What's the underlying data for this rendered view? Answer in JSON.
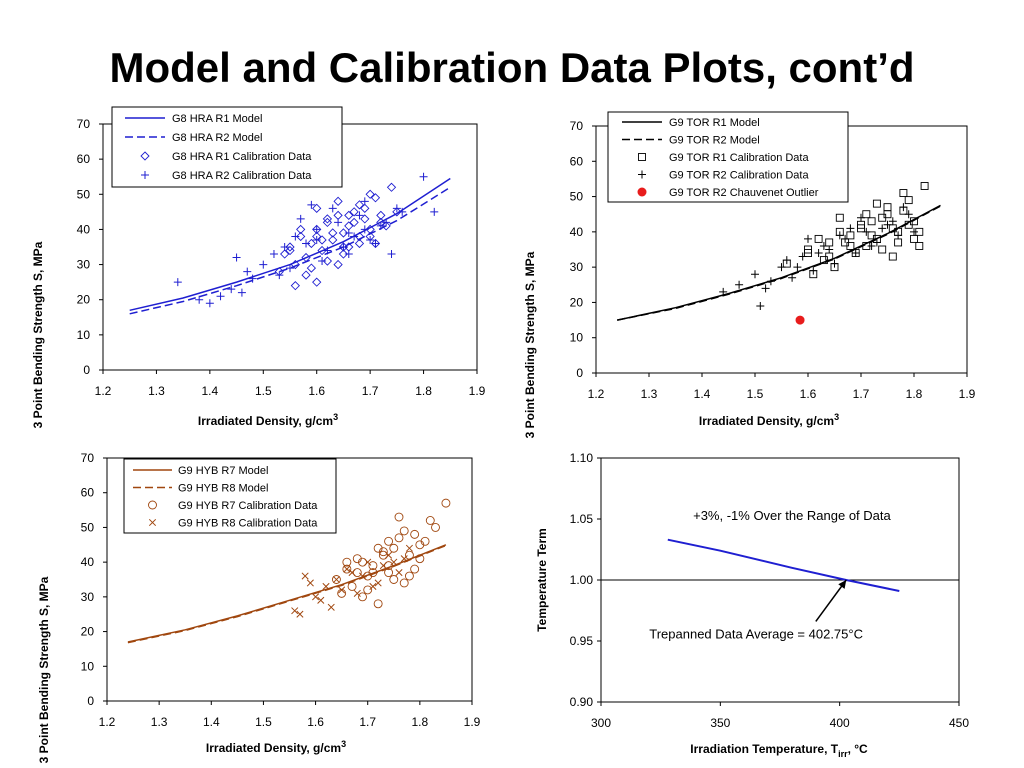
{
  "page": {
    "title": "Model and Calibration Data Plots, cont’d"
  },
  "chart_data": [
    {
      "type": "scatter",
      "panel": "top-left",
      "xlabel": "Irradiated Density, g/cm",
      "xlabel_sup": "3",
      "ylabel": "3 Point Bending Strength S, MPa",
      "xlim": [
        1.2,
        1.9
      ],
      "ylim": [
        0,
        70
      ],
      "xticks": [
        "1.2",
        "1.3",
        "1.4",
        "1.5",
        "1.6",
        "1.7",
        "1.8",
        "1.9"
      ],
      "yticks": [
        "0",
        "10",
        "20",
        "30",
        "40",
        "50",
        "60",
        "70"
      ],
      "grid": false,
      "legend_position": "top-left",
      "color": "#1f1fd1",
      "series": [
        {
          "name": "G8 HRA R1 Model",
          "kind": "line",
          "style": "solid",
          "x": [
            1.25,
            1.35,
            1.45,
            1.55,
            1.65,
            1.75,
            1.85
          ],
          "y": [
            17,
            20.5,
            25,
            30,
            36.5,
            44.5,
            54.5
          ]
        },
        {
          "name": "G8 HRA R2 Model",
          "kind": "line",
          "style": "dashed",
          "x": [
            1.25,
            1.35,
            1.45,
            1.55,
            1.65,
            1.75,
            1.85
          ],
          "y": [
            16,
            19.5,
            24,
            29,
            35,
            42.5,
            52
          ]
        },
        {
          "name": "G8 HRA R1 Calibration Data",
          "kind": "scatter",
          "marker": "diamond",
          "x": [
            1.55,
            1.56,
            1.57,
            1.58,
            1.59,
            1.6,
            1.61,
            1.62,
            1.63,
            1.64,
            1.65,
            1.66,
            1.67,
            1.68,
            1.69,
            1.7,
            1.71,
            1.72,
            1.53,
            1.54,
            1.58,
            1.6,
            1.62,
            1.64,
            1.66,
            1.68,
            1.7,
            1.72,
            1.74,
            1.6,
            1.63,
            1.65,
            1.67,
            1.69,
            1.57,
            1.59,
            1.61,
            1.66,
            1.7,
            1.73,
            1.56,
            1.68,
            1.75,
            1.62,
            1.64,
            1.6,
            1.55,
            1.71,
            1.65
          ],
          "y": [
            35,
            30,
            38,
            32,
            36,
            40,
            34,
            42,
            37,
            44,
            39,
            41,
            45,
            38,
            43,
            40,
            36,
            42,
            28,
            33,
            27,
            46,
            31,
            48,
            35,
            47,
            50,
            44,
            52,
            25,
            39,
            33,
            42,
            46,
            40,
            29,
            37,
            44,
            38,
            41,
            24,
            36,
            45,
            43,
            30,
            38,
            34,
            49,
            35
          ]
        },
        {
          "name": "G8 HRA R2 Calibration Data",
          "kind": "scatter",
          "marker": "plus",
          "x": [
            1.34,
            1.38,
            1.42,
            1.45,
            1.46,
            1.47,
            1.5,
            1.52,
            1.54,
            1.56,
            1.58,
            1.6,
            1.62,
            1.64,
            1.66,
            1.68,
            1.7,
            1.72,
            1.74,
            1.76,
            1.8,
            1.82,
            1.48,
            1.55,
            1.57,
            1.61,
            1.63,
            1.65,
            1.67,
            1.69,
            1.71,
            1.73,
            1.59,
            1.53,
            1.44,
            1.4,
            1.66,
            1.6,
            1.69,
            1.75
          ],
          "y": [
            25,
            20,
            21,
            32,
            22,
            28,
            30,
            33,
            35,
            38,
            36,
            40,
            34,
            42,
            39,
            44,
            37,
            41,
            33,
            45,
            55,
            45,
            26,
            29,
            43,
            31,
            46,
            35,
            38,
            40,
            36,
            42,
            47,
            27,
            23,
            19,
            33,
            37,
            48,
            46
          ]
        }
      ]
    },
    {
      "type": "scatter",
      "panel": "top-right",
      "xlabel": "Irradiated Density, g/cm",
      "xlabel_sup": "3",
      "ylabel": "3 Point Bending Strength S, MPa",
      "xlim": [
        1.2,
        1.9
      ],
      "ylim": [
        0,
        70
      ],
      "xticks": [
        "1.2",
        "1.3",
        "1.4",
        "1.5",
        "1.6",
        "1.7",
        "1.8",
        "1.9"
      ],
      "yticks": [
        "0",
        "10",
        "20",
        "30",
        "40",
        "50",
        "60",
        "70"
      ],
      "grid": false,
      "legend_position": "top-left",
      "color": "#000000",
      "series": [
        {
          "name": "G9 TOR R1 Model",
          "kind": "line",
          "style": "solid",
          "x": [
            1.24,
            1.35,
            1.45,
            1.55,
            1.65,
            1.75,
            1.85
          ],
          "y": [
            15,
            18.5,
            22.5,
            27,
            32.5,
            39.5,
            47.5
          ]
        },
        {
          "name": "G9 TOR R2 Model",
          "kind": "line",
          "style": "dashed",
          "x": [
            1.24,
            1.35,
            1.45,
            1.55,
            1.65,
            1.75,
            1.85
          ],
          "y": [
            15,
            18.3,
            22.3,
            26.8,
            32.3,
            39.3,
            47.3
          ]
        },
        {
          "name": "G9 TOR R1 Calibration Data",
          "kind": "scatter",
          "marker": "square",
          "x": [
            1.56,
            1.6,
            1.62,
            1.64,
            1.66,
            1.68,
            1.7,
            1.72,
            1.74,
            1.76,
            1.78,
            1.8,
            1.82,
            1.65,
            1.67,
            1.69,
            1.71,
            1.73,
            1.75,
            1.77,
            1.79,
            1.81,
            1.61,
            1.63,
            1.7,
            1.74,
            1.78,
            1.8,
            1.76,
            1.72,
            1.68,
            1.66,
            1.73,
            1.77,
            1.79,
            1.75,
            1.71,
            1.81,
            1.6,
            1.64
          ],
          "y": [
            31,
            35,
            38,
            33,
            40,
            36,
            42,
            39,
            44,
            41,
            46,
            43,
            53,
            30,
            37,
            34,
            45,
            38,
            47,
            40,
            49,
            36,
            28,
            32,
            41,
            35,
            51,
            38,
            33,
            43,
            39,
            44,
            48,
            37,
            42,
            45,
            36,
            40,
            34,
            37
          ]
        },
        {
          "name": "G9 TOR R2 Calibration Data",
          "kind": "scatter",
          "marker": "plus",
          "x": [
            1.44,
            1.47,
            1.5,
            1.51,
            1.53,
            1.55,
            1.57,
            1.59,
            1.61,
            1.63,
            1.65,
            1.67,
            1.69,
            1.71,
            1.73,
            1.75,
            1.77,
            1.79,
            1.52,
            1.56,
            1.6,
            1.64,
            1.68,
            1.72,
            1.76,
            1.8,
            1.58,
            1.62,
            1.66,
            1.7,
            1.74,
            1.78
          ],
          "y": [
            23,
            25,
            28,
            19,
            26,
            30,
            27,
            33,
            29,
            36,
            31,
            38,
            34,
            40,
            37,
            42,
            39,
            45,
            24,
            32,
            38,
            35,
            41,
            36,
            43,
            40,
            30,
            34,
            39,
            44,
            41,
            47
          ]
        },
        {
          "name": "G9 TOR R2 Chauvenet Outlier",
          "kind": "scatter",
          "marker": "filled-circle",
          "color": "#e81c1c",
          "x": [
            1.585
          ],
          "y": [
            15
          ]
        }
      ]
    },
    {
      "type": "scatter",
      "panel": "bottom-left",
      "xlabel": "Irradiated Density, g/cm",
      "xlabel_sup": "3",
      "ylabel": "3 Point Bending Strength S, MPa",
      "xlim": [
        1.2,
        1.9
      ],
      "ylim": [
        0,
        70
      ],
      "xticks": [
        "1.2",
        "1.3",
        "1.4",
        "1.5",
        "1.6",
        "1.7",
        "1.8",
        "1.9"
      ],
      "yticks": [
        "0",
        "10",
        "20",
        "30",
        "40",
        "50",
        "60",
        "70"
      ],
      "grid": false,
      "legend_position": "top-left",
      "color": "#a0470f",
      "series": [
        {
          "name": "G9 HYB R7 Model",
          "kind": "line",
          "style": "solid",
          "x": [
            1.24,
            1.35,
            1.45,
            1.55,
            1.65,
            1.75,
            1.85
          ],
          "y": [
            17,
            20.5,
            24.5,
            29,
            33.5,
            39,
            45
          ]
        },
        {
          "name": "G9 HYB R8 Model",
          "kind": "line",
          "style": "dashed",
          "x": [
            1.24,
            1.35,
            1.45,
            1.55,
            1.65,
            1.75,
            1.85
          ],
          "y": [
            16.8,
            20.3,
            24.3,
            28.8,
            33.3,
            38.8,
            44.8
          ]
        },
        {
          "name": "G9 HYB R7 Calibration Data",
          "kind": "scatter",
          "marker": "circle",
          "x": [
            1.64,
            1.66,
            1.68,
            1.7,
            1.72,
            1.74,
            1.76,
            1.78,
            1.8,
            1.82,
            1.85,
            1.67,
            1.69,
            1.71,
            1.73,
            1.75,
            1.77,
            1.79,
            1.81,
            1.65,
            1.7,
            1.74,
            1.78,
            1.72,
            1.76,
            1.8,
            1.68,
            1.75,
            1.83,
            1.71,
            1.77,
            1.73,
            1.79,
            1.69,
            1.66,
            1.74
          ],
          "y": [
            35,
            38,
            41,
            36,
            44,
            39,
            47,
            42,
            45,
            52,
            57,
            33,
            40,
            37,
            43,
            35,
            49,
            38,
            46,
            31,
            32,
            46,
            36,
            28,
            53,
            41,
            37,
            44,
            50,
            39,
            34,
            42,
            48,
            30,
            40,
            37
          ]
        },
        {
          "name": "G9 HYB R8 Calibration Data",
          "kind": "scatter",
          "marker": "x",
          "x": [
            1.56,
            1.58,
            1.6,
            1.62,
            1.64,
            1.66,
            1.68,
            1.7,
            1.72,
            1.74,
            1.76,
            1.78,
            1.57,
            1.61,
            1.65,
            1.69,
            1.73,
            1.77,
            1.59,
            1.63,
            1.67,
            1.71,
            1.75
          ],
          "y": [
            26,
            36,
            30,
            33,
            35,
            38,
            31,
            40,
            34,
            42,
            37,
            44,
            25,
            29,
            32,
            36,
            39,
            41,
            34,
            27,
            37,
            33,
            40
          ]
        }
      ]
    },
    {
      "type": "line",
      "panel": "bottom-right",
      "xlabel": "Irradiation Temperature, T",
      "xlabel_sub": "irr",
      "xlabel_suffix": ", °C",
      "ylabel": "Temperature Term",
      "xlim": [
        300,
        450
      ],
      "ylim": [
        0.9,
        1.1
      ],
      "xticks": [
        "300",
        "350",
        "400",
        "450"
      ],
      "yticks": [
        "0.90",
        "0.95",
        "1.00",
        "1.05",
        "1.10"
      ],
      "grid": false,
      "reference_line_y": 1.0,
      "color": "#1f1fd1",
      "series": [
        {
          "kind": "line",
          "style": "solid",
          "x": [
            328,
            350,
            380,
            402.75,
            425
          ],
          "y": [
            1.033,
            1.024,
            1.01,
            1.0,
            0.991
          ]
        }
      ],
      "annotations": [
        {
          "text": "+3%, -1% Over the Range of Data",
          "x": 380,
          "y": 1.049
        },
        {
          "text": "Trepanned Data Average = 402.75°C",
          "x": 365,
          "y": 0.952,
          "arrow_to": [
            402.75,
            1.0
          ],
          "arrow_from": [
            390,
            0.966
          ]
        }
      ]
    }
  ]
}
